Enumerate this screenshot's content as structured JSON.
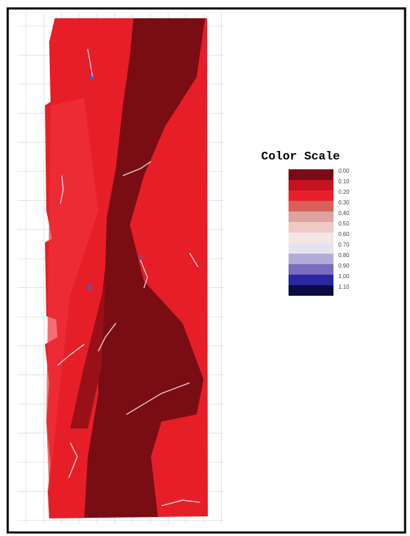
{
  "legend": {
    "title": "Color Scale",
    "levels": [
      {
        "label": "0.00",
        "color": "#7a0c14"
      },
      {
        "label": "0.10",
        "color": "#c41220"
      },
      {
        "label": "0.20",
        "color": "#e8202c"
      },
      {
        "label": "0.30",
        "color": "#d8605c"
      },
      {
        "label": "0.40",
        "color": "#dca49c"
      },
      {
        "label": "0.50",
        "color": "#f2c8c4"
      },
      {
        "label": "0.60",
        "color": "#f2e6e6"
      },
      {
        "label": "0.70",
        "color": "#e4e4f0"
      },
      {
        "label": "0.80",
        "color": "#b4acd8"
      },
      {
        "label": "0.90",
        "color": "#7c6cc0"
      },
      {
        "label": "1.00",
        "color": "#2c26a0"
      },
      {
        "label": "1.10",
        "color": "#0a0c44"
      }
    ]
  }
}
